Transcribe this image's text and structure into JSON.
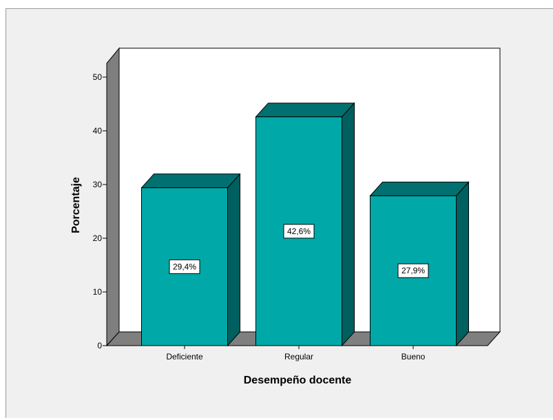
{
  "chart_data": {
    "type": "bar",
    "categories": [
      "Deficiente",
      "Regular",
      "Bueno"
    ],
    "values": [
      29.4,
      42.6,
      27.9
    ],
    "data_labels": [
      "29,4%",
      "42,6%",
      "27,9%"
    ],
    "xlabel": "Desempeño docente",
    "ylabel": "Porcentaje",
    "ylim": [
      0,
      50
    ],
    "yticks": [
      0,
      10,
      20,
      30,
      40,
      50
    ],
    "grid": false,
    "style": "3d",
    "colors": {
      "bar_front": "#00a8a8",
      "bar_top": "#007070",
      "bar_side": "#005f5f",
      "wall": "#7f7f7f",
      "floor": "#7f7f7f",
      "background": "#f0f0f0"
    }
  }
}
